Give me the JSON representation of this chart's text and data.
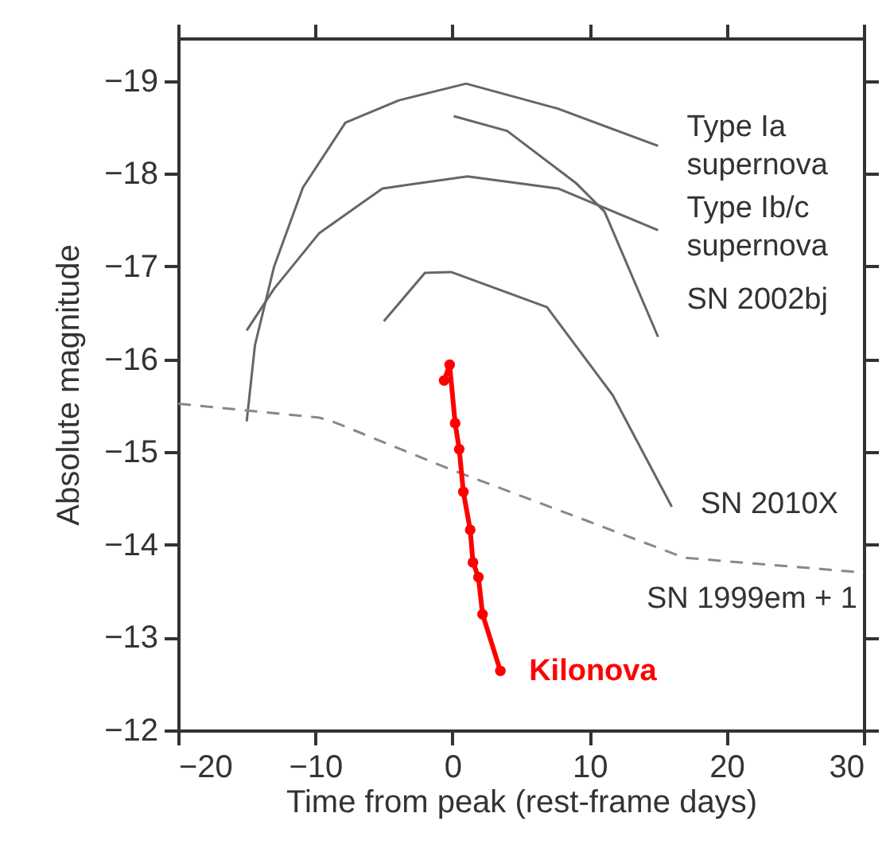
{
  "chart_data": {
    "type": "line",
    "xlabel": "Time from peak (rest-frame days)",
    "ylabel": "Absolute magnitude",
    "xlim": [
      -20,
      30
    ],
    "xticks": [
      -20,
      -10,
      0,
      10,
      20,
      30
    ],
    "ylim": [
      -12,
      -19.46
    ],
    "yticks": [
      -12,
      -13,
      -14,
      -15,
      -16,
      -17,
      -18,
      -19
    ],
    "grid": false,
    "series": [
      {
        "name": "Type Ia\nsupernova",
        "color": "#666666",
        "line_style": "solid",
        "marker": "none",
        "x": [
          -15,
          -14.4,
          -13,
          -10.9,
          -7.8,
          -3.9,
          1,
          7.7,
          15
        ],
        "values": [
          -15.33,
          -16.15,
          -17.0,
          -17.85,
          -18.55,
          -18.79,
          -18.97,
          -18.7,
          -18.3
        ]
      },
      {
        "name": "Type Ib/c\nsupernova",
        "color": "#666666",
        "line_style": "solid",
        "marker": "none",
        "x": [
          -15,
          -13,
          -9.7,
          -5.1,
          1.1,
          7.7,
          15
        ],
        "values": [
          -16.31,
          -16.76,
          -17.36,
          -17.84,
          -17.97,
          -17.84,
          -17.39
        ]
      },
      {
        "name": "SN 2002bj",
        "color": "#666666",
        "line_style": "solid",
        "marker": "none",
        "x": [
          0.1,
          4.0,
          9.0,
          11.1,
          15.0
        ],
        "values": [
          -18.62,
          -18.46,
          -17.9,
          -17.59,
          -16.24
        ]
      },
      {
        "name": "SN 2010X",
        "color": "#666666",
        "line_style": "solid",
        "marker": "none",
        "x": [
          -5.0,
          -2.0,
          -0.1,
          6.9,
          11.7,
          16.0
        ],
        "values": [
          -16.41,
          -16.93,
          -16.94,
          -16.56,
          -15.61,
          -14.41
        ]
      },
      {
        "name": "SN 1999em + 1",
        "color": "#888888",
        "line_style": "dashed",
        "marker": "none",
        "x": [
          -20,
          -9.7,
          -8.6,
          -0.1,
          9.6,
          16.9,
          30
        ],
        "values": [
          -15.52,
          -15.37,
          -15.32,
          -14.81,
          -14.27,
          -13.86,
          -13.7
        ]
      },
      {
        "name": "Kilonova",
        "color": "#ff0000",
        "line_style": "solid",
        "marker": "circle",
        "x": [
          -0.6,
          -0.2,
          0.2,
          0.5,
          0.8,
          1.3,
          1.5,
          1.9,
          2.2,
          3.5
        ],
        "values": [
          -15.77,
          -15.94,
          -15.31,
          -15.03,
          -14.57,
          -14.16,
          -13.81,
          -13.65,
          -13.25,
          -12.64
        ]
      }
    ]
  }
}
